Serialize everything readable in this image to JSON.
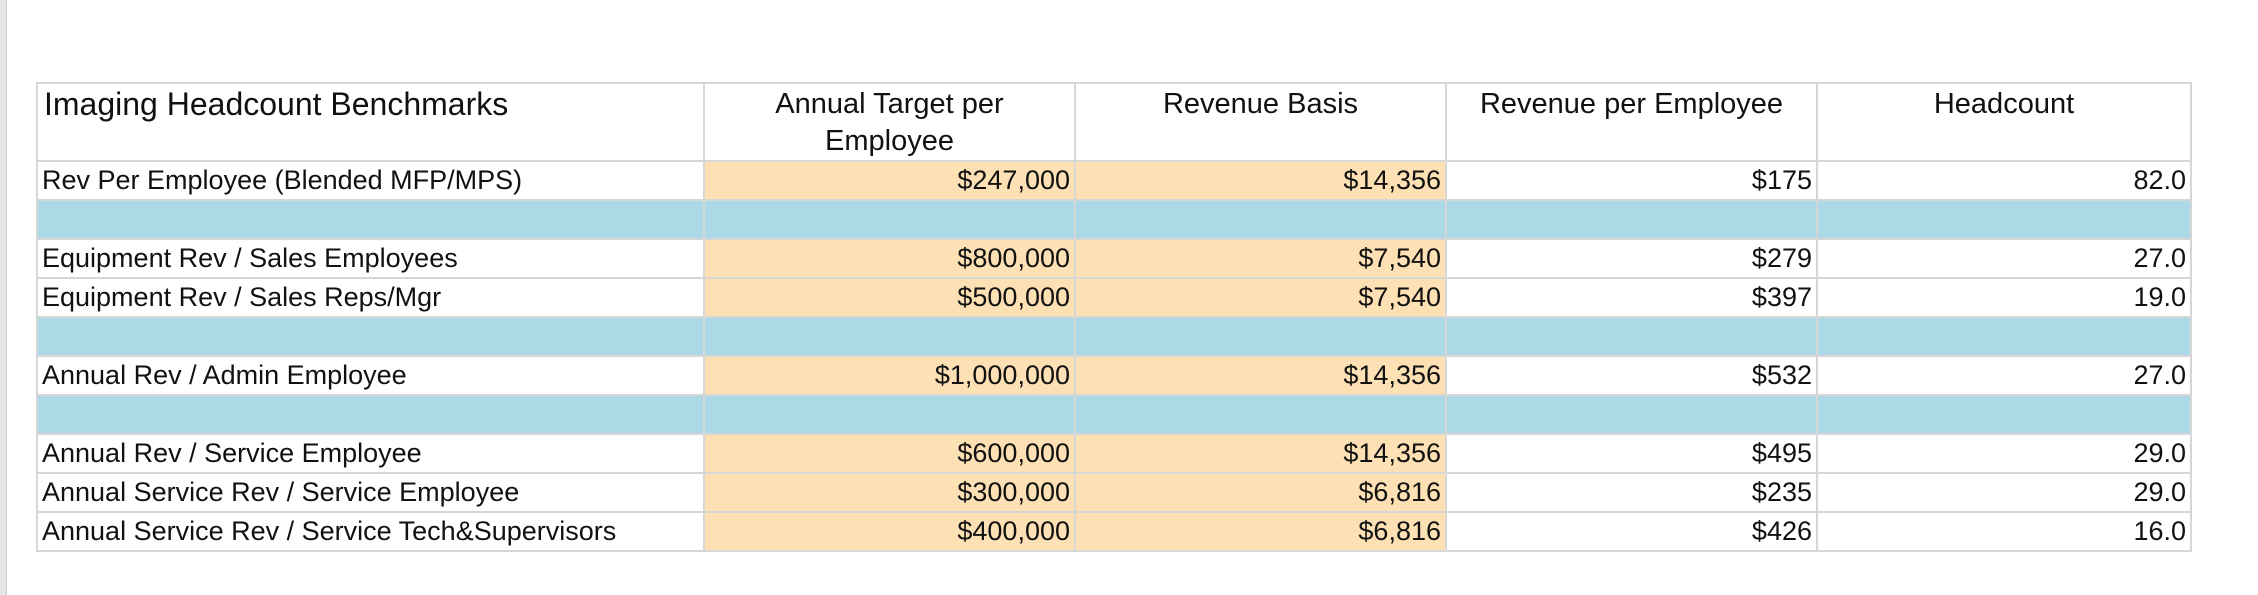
{
  "table": {
    "title": "Imaging Headcount Benchmarks",
    "columns": [
      "Annual Target per Employee",
      "Revenue Basis",
      "Revenue per Employee",
      "Headcount"
    ],
    "rows": [
      {
        "label": "Rev  Per Employee (Blended MFP/MPS)",
        "target": "$247,000",
        "basis": "$14,356",
        "rev_per_employee": "$175",
        "headcount": "82.0"
      },
      {
        "label": "Equipment Rev / Sales Employees",
        "target": "$800,000",
        "basis": "$7,540",
        "rev_per_employee": "$279",
        "headcount": "27.0"
      },
      {
        "label": "Equipment Rev / Sales Reps/Mgr",
        "target": "$500,000",
        "basis": "$7,540",
        "rev_per_employee": "$397",
        "headcount": "19.0"
      },
      {
        "label": "Annual Rev / Admin Employee",
        "target": "$1,000,000",
        "basis": "$14,356",
        "rev_per_employee": "$532",
        "headcount": "27.0"
      },
      {
        "label": "Annual Rev / Service Employee",
        "target": "$600,000",
        "basis": "$14,356",
        "rev_per_employee": "$495",
        "headcount": "29.0"
      },
      {
        "label": "Annual Service Rev / Service Employee",
        "target": "$300,000",
        "basis": "$6,816",
        "rev_per_employee": "$235",
        "headcount": "29.0"
      },
      {
        "label": "Annual Service Rev / Service Tech&Supervisors",
        "target": "$400,000",
        "basis": "$6,816",
        "rev_per_employee": "$426",
        "headcount": "16.0"
      }
    ]
  },
  "colors": {
    "input_fill": "#fde0b3",
    "separator_fill": "#add8e6",
    "grid_line": "#d6d6d6"
  }
}
